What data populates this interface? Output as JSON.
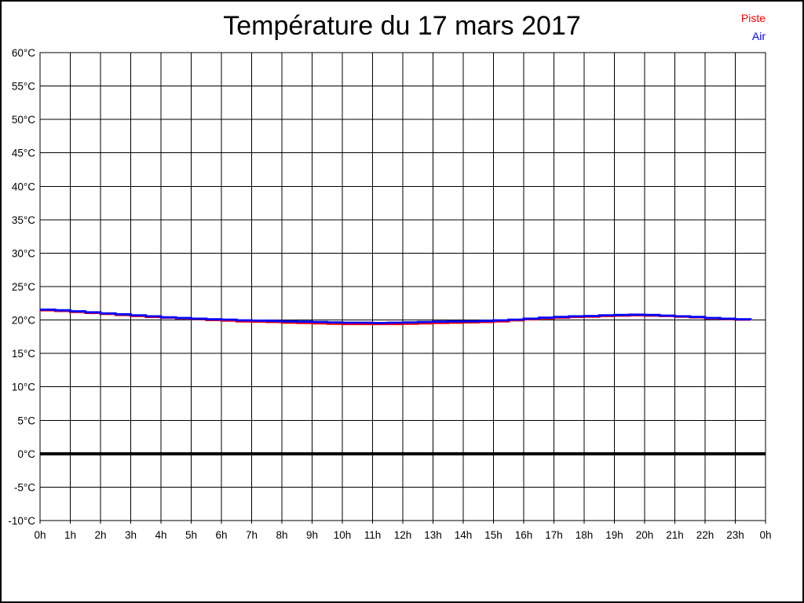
{
  "title": "Température du 17 mars 2017",
  "legend": {
    "items": [
      {
        "label": "Piste",
        "color": "#ff0000"
      },
      {
        "label": "Air",
        "color": "#0000ff"
      }
    ]
  },
  "chart_data": {
    "type": "line",
    "step_interpolation": true,
    "title": "Température du 17 mars 2017",
    "xlabel": "",
    "ylabel": "",
    "xlim": [
      0,
      24
    ],
    "ylim": [
      -10,
      60
    ],
    "grid": true,
    "legend_position": "top-right",
    "background": "#ffffff",
    "axis_color": "#000000",
    "zero_line_emphasized": true,
    "y_ticks": [
      60,
      55,
      50,
      45,
      40,
      35,
      30,
      25,
      20,
      15,
      10,
      5,
      0,
      -5,
      -10
    ],
    "y_tick_labels": [
      "60°C",
      "55°C",
      "50°C",
      "45°C",
      "40°C",
      "35°C",
      "30°C",
      "25°C",
      "20°C",
      "15°C",
      "10°C",
      "5°C",
      "0°C",
      "-5°C",
      "-10°C"
    ],
    "x_ticks": [
      0,
      1,
      2,
      3,
      4,
      5,
      6,
      7,
      8,
      9,
      10,
      11,
      12,
      13,
      14,
      15,
      16,
      17,
      18,
      19,
      20,
      21,
      22,
      23,
      24
    ],
    "x_tick_labels": [
      "0h",
      "1h",
      "2h",
      "3h",
      "4h",
      "5h",
      "6h",
      "7h",
      "8h",
      "9h",
      "10h",
      "11h",
      "12h",
      "13h",
      "14h",
      "15h",
      "16h",
      "17h",
      "18h",
      "19h",
      "20h",
      "21h",
      "22h",
      "23h",
      "0h"
    ],
    "x": [
      0,
      0.5,
      1,
      1.5,
      2,
      2.5,
      3,
      3.5,
      4,
      4.5,
      5,
      5.5,
      6,
      6.5,
      7,
      7.5,
      8,
      8.5,
      9,
      9.5,
      10,
      10.5,
      11,
      11.5,
      12,
      12.5,
      13,
      13.5,
      14,
      14.5,
      15,
      15.5,
      16,
      16.5,
      17,
      17.5,
      18,
      18.5,
      19,
      19.5,
      20,
      20.5,
      21,
      21.5,
      22,
      22.5,
      23,
      23.5
    ],
    "series": [
      {
        "name": "Piste",
        "color": "#ff0000",
        "values": [
          21.45,
          21.35,
          21.2,
          21.05,
          20.9,
          20.75,
          20.6,
          20.45,
          20.35,
          20.25,
          20.15,
          20.0,
          19.9,
          19.8,
          19.75,
          19.7,
          19.6,
          19.55,
          19.5,
          19.45,
          19.4,
          19.4,
          19.4,
          19.4,
          19.45,
          19.5,
          19.55,
          19.6,
          19.65,
          19.7,
          19.8,
          19.95,
          20.1,
          20.25,
          20.35,
          20.45,
          20.5,
          20.6,
          20.65,
          20.7,
          20.65,
          20.6,
          20.5,
          20.4,
          20.25,
          20.15,
          20.05,
          19.95
        ]
      },
      {
        "name": "Air",
        "color": "#0000ff",
        "values": [
          21.55,
          21.45,
          21.3,
          21.15,
          21.0,
          20.85,
          20.7,
          20.55,
          20.4,
          20.3,
          20.2,
          20.1,
          20.05,
          19.95,
          19.9,
          19.85,
          19.8,
          19.75,
          19.7,
          19.65,
          19.6,
          19.6,
          19.55,
          19.6,
          19.65,
          19.7,
          19.75,
          19.8,
          19.8,
          19.85,
          19.95,
          20.05,
          20.2,
          20.35,
          20.45,
          20.55,
          20.6,
          20.7,
          20.75,
          20.8,
          20.75,
          20.65,
          20.55,
          20.45,
          20.3,
          20.2,
          20.1,
          20.0
        ]
      }
    ]
  }
}
